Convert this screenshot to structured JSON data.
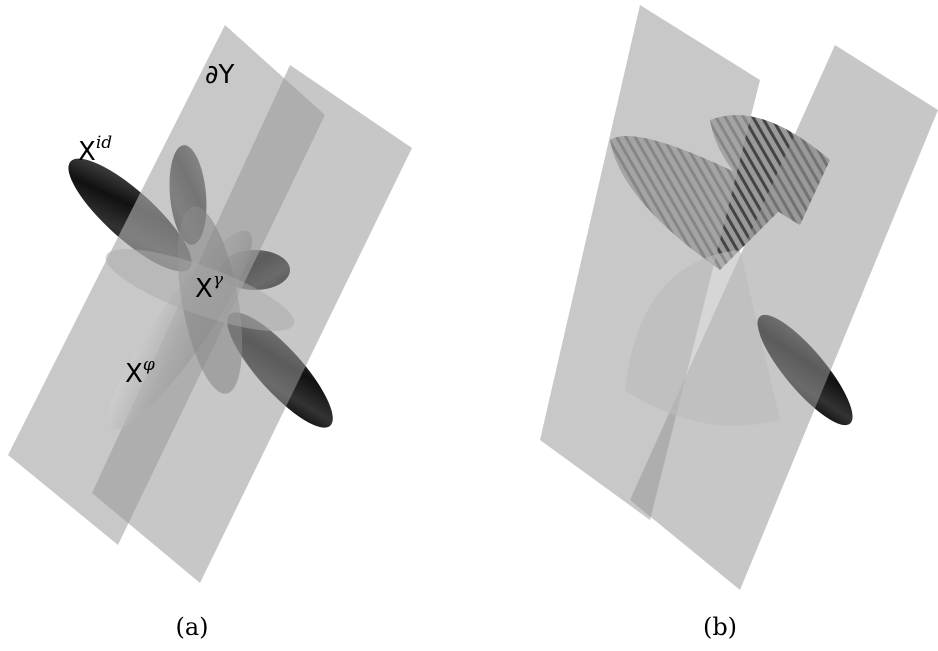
{
  "panel_a": {
    "plane_label": "∂Y",
    "labels": [
      {
        "base": "X",
        "sup": "id"
      },
      {
        "base": "X",
        "sup": "γ"
      },
      {
        "base": "X",
        "sup": "φ"
      }
    ],
    "caption": "(a)"
  },
  "panel_b": {
    "caption": "(b)"
  }
}
